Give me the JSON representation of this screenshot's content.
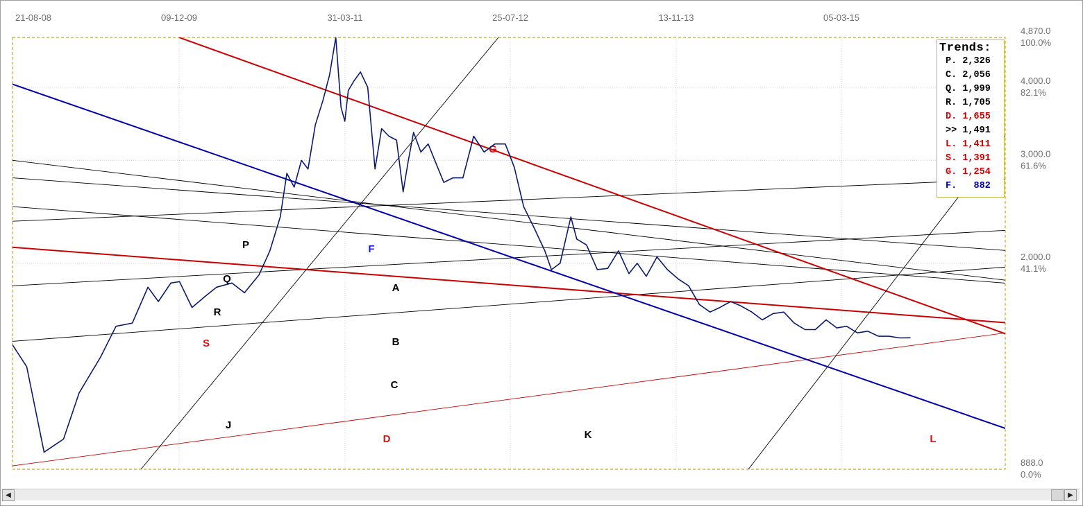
{
  "chart_data": {
    "type": "line",
    "title": "",
    "xlabel": "",
    "ylabel": "",
    "scale": "log",
    "date_ticks": [
      "21-08-08",
      "09-12-09",
      "31-03-11",
      "25-07-12",
      "13-11-13",
      "05-03-15"
    ],
    "price_ticks": [
      {
        "price": "4,870.0",
        "pct": "100.0%",
        "value": 4870
      },
      {
        "price": "4,000.0",
        "pct": "82.1%",
        "value": 4000
      },
      {
        "price": "3,000.0",
        "pct": "61.6%",
        "value": 3000
      },
      {
        "price": "2,000.0",
        "pct": "41.1%",
        "value": 2000
      },
      {
        "price": "888.0",
        "pct": "0.0%",
        "value": 888
      }
    ],
    "ylim": [
      888,
      4870
    ],
    "grid": true,
    "legend_position": "top-right",
    "series": [
      {
        "color": "#0a1a6e",
        "x": [
          "2008-08-21",
          "2008-10-01",
          "2008-11-20",
          "2009-01-15",
          "2009-03-01",
          "2009-05-01",
          "2009-06-15",
          "2009-08-01",
          "2009-09-15",
          "2009-10-15",
          "2009-11-20",
          "2009-12-15",
          "2010-01-20",
          "2010-03-01",
          "2010-04-01",
          "2010-05-15",
          "2010-06-20",
          "2010-08-01",
          "2010-09-01",
          "2010-10-01",
          "2010-10-20",
          "2010-11-10",
          "2010-12-01",
          "2010-12-20",
          "2011-01-10",
          "2011-02-01",
          "2011-02-20",
          "2011-03-10",
          "2011-03-25",
          "2011-04-05",
          "2011-04-15",
          "2011-05-01",
          "2011-05-20",
          "2011-06-10",
          "2011-07-01",
          "2011-07-20",
          "2011-08-10",
          "2011-09-01",
          "2011-09-20",
          "2011-10-05",
          "2011-10-20",
          "2011-11-10",
          "2011-12-01",
          "2011-12-20",
          "2012-01-15",
          "2012-02-10",
          "2012-03-10",
          "2012-04-10",
          "2012-05-10",
          "2012-06-10",
          "2012-07-10",
          "2012-08-05",
          "2012-09-01",
          "2012-10-01",
          "2012-11-01",
          "2012-11-20",
          "2012-12-15",
          "2013-01-15",
          "2013-02-01",
          "2013-03-01",
          "2013-04-01",
          "2013-05-01",
          "2013-06-01",
          "2013-07-01",
          "2013-07-25",
          "2013-08-20",
          "2013-09-20",
          "2013-10-20",
          "2013-11-20",
          "2013-12-20",
          "2014-01-20",
          "2014-02-20",
          "2014-03-20",
          "2014-04-20",
          "2014-05-20",
          "2014-06-20",
          "2014-07-20",
          "2014-08-20",
          "2014-09-20",
          "2014-10-20",
          "2014-11-20",
          "2014-12-20",
          "2015-01-20",
          "2015-02-20",
          "2015-03-20",
          "2015-04-20",
          "2015-05-20",
          "2015-06-20",
          "2015-07-20",
          "2015-08-20",
          "2015-09-20"
        ],
        "values": [
          1450,
          1330,
          950,
          1000,
          1200,
          1380,
          1560,
          1580,
          1820,
          1720,
          1850,
          1860,
          1680,
          1760,
          1820,
          1850,
          1780,
          1910,
          2100,
          2400,
          2850,
          2700,
          3000,
          2900,
          3450,
          3800,
          4200,
          4870,
          3700,
          3500,
          3950,
          4100,
          4250,
          4000,
          2900,
          3400,
          3300,
          3250,
          2650,
          3000,
          3350,
          3100,
          3200,
          3000,
          2750,
          2800,
          2800,
          3300,
          3100,
          3200,
          3200,
          2920,
          2500,
          2300,
          2100,
          1950,
          2000,
          2400,
          2200,
          2150,
          1950,
          1960,
          2100,
          1920,
          2000,
          1900,
          2050,
          1950,
          1880,
          1830,
          1700,
          1650,
          1680,
          1720,
          1690,
          1650,
          1600,
          1640,
          1650,
          1580,
          1540,
          1540,
          1600,
          1550,
          1560,
          1520,
          1530,
          1500,
          1500,
          1490,
          1491
        ]
      }
    ],
    "trendlines": [
      {
        "name": "P",
        "color": "#000000",
        "label_color": "#000000",
        "kind": "thin",
        "from": [
          840,
          3000
        ],
        "to": [
          2560,
          1700
        ]
      },
      {
        "name": "Q",
        "color": "#000000",
        "label_color": "#000000",
        "kind": "thin",
        "from": [
          840,
          2800
        ],
        "to": [
          2560,
          1985
        ]
      },
      {
        "name": "R",
        "color": "#000000",
        "label_color": "#000000",
        "kind": "thin",
        "from": [
          840,
          2500
        ],
        "to": [
          2560,
          1740
        ]
      },
      {
        "name": "A",
        "color": "#000000",
        "label_color": "#000000",
        "kind": "thin",
        "from": [
          840,
          2360
        ],
        "to": [
          2560,
          2880
        ]
      },
      {
        "name": "B",
        "color": "#000000",
        "label_color": "#000000",
        "kind": "thin",
        "from": [
          840,
          1830
        ],
        "to": [
          2560,
          2380
        ]
      },
      {
        "name": "C",
        "color": "#000000",
        "label_color": "#000000",
        "kind": "thin",
        "from": [
          840,
          1470
        ],
        "to": [
          2560,
          2090
        ]
      },
      {
        "name": "S",
        "color": "#cc0000",
        "label_color": "#dd1111",
        "kind": "thick",
        "from": [
          840,
          2130
        ],
        "to": [
          2560,
          1490
        ]
      },
      {
        "name": "D",
        "color": "#cc0000",
        "label_color": "#dd1111",
        "kind": "thin",
        "from": [
          840,
          900
        ],
        "to": [
          2560,
          1690
        ]
      },
      {
        "name": "G",
        "color": "#cc0000",
        "label_color": "#dd1111",
        "kind": "thick",
        "from": [
          1080,
          4870
        ],
        "to": [
          2560,
          1140
        ]
      },
      {
        "name": "F",
        "color": "#0000aa",
        "label_color": "#1a1aee",
        "kind": "thick",
        "from": [
          840,
          4050
        ],
        "to": [
          2440,
          888
        ]
      },
      {
        "name": "J",
        "color": "#000000",
        "label_color": "#000000",
        "kind": "thin",
        "from": [
          1025,
          888
        ],
        "to": [
          1540,
          4870
        ]
      },
      {
        "name": "K",
        "color": "#000000",
        "label_color": "#000000",
        "kind": "thin",
        "from": [
          1900,
          888
        ],
        "to": [
          2380,
          4870
        ]
      },
      {
        "name": "L",
        "color": "#cc0000",
        "label_color": "#dd1111",
        "kind": "thin",
        "from": [
          2420,
          888
        ],
        "to": [
          2560,
          2060
        ]
      }
    ]
  },
  "legend": {
    "title": "Trends:",
    "rows": [
      {
        "text": "P. 2,326",
        "color": "#000000"
      },
      {
        "text": "C. 2,056",
        "color": "#000000"
      },
      {
        "text": "Q. 1,999",
        "color": "#000000"
      },
      {
        "text": "R. 1,705",
        "color": "#000000"
      },
      {
        "text": "D. 1,655",
        "color": "#cc0000"
      },
      {
        "text": ">> 1,491",
        "color": "#000000"
      },
      {
        "text": "L. 1,411",
        "color": "#cc0000"
      },
      {
        "text": "S. 1,391",
        "color": "#cc0000"
      },
      {
        "text": "G. 1,254",
        "color": "#cc0000"
      },
      {
        "text": "F.   882",
        "color": "#0000aa"
      }
    ]
  },
  "scrollbar": {
    "left_arrow": "◀",
    "right_arrow": "▶"
  }
}
